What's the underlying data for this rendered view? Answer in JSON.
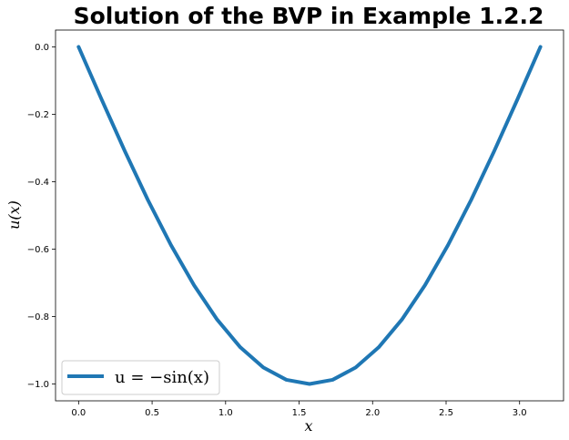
{
  "chart_data": {
    "type": "line",
    "title": "Solution of the BVP in Example 1.2.2",
    "xlabel": "x",
    "ylabel": "u(x)",
    "xlim": [
      -0.157,
      3.299
    ],
    "ylim": [
      -1.05,
      0.05
    ],
    "xticks": [
      0.0,
      0.5,
      1.0,
      1.5,
      2.0,
      2.5,
      3.0
    ],
    "xtick_labels": [
      "0.0",
      "0.5",
      "1.0",
      "1.5",
      "2.0",
      "2.5",
      "3.0"
    ],
    "yticks": [
      0.0,
      -0.2,
      -0.4,
      -0.6,
      -0.8,
      -1.0
    ],
    "ytick_labels": [
      "0.0",
      "−0.2",
      "−0.4",
      "−0.6",
      "−0.8",
      "−1.0"
    ],
    "grid": false,
    "legend_position": "lower-left",
    "series": [
      {
        "name": "u = −sin(x)",
        "color": "#1f77b4",
        "x": [
          0.0,
          0.1571,
          0.3142,
          0.4712,
          0.6283,
          0.7854,
          0.9425,
          1.0996,
          1.2566,
          1.4137,
          1.5708,
          1.7279,
          1.885,
          2.042,
          2.1991,
          2.3562,
          2.5133,
          2.6704,
          2.8274,
          2.9845,
          3.1416
        ],
        "y": [
          0.0,
          -0.1564,
          -0.309,
          -0.454,
          -0.5878,
          -0.7071,
          -0.809,
          -0.891,
          -0.9511,
          -0.9877,
          -1.0,
          -0.9877,
          -0.9511,
          -0.891,
          -0.809,
          -0.7071,
          -0.5878,
          -0.454,
          -0.309,
          -0.1564,
          0.0
        ]
      }
    ]
  }
}
